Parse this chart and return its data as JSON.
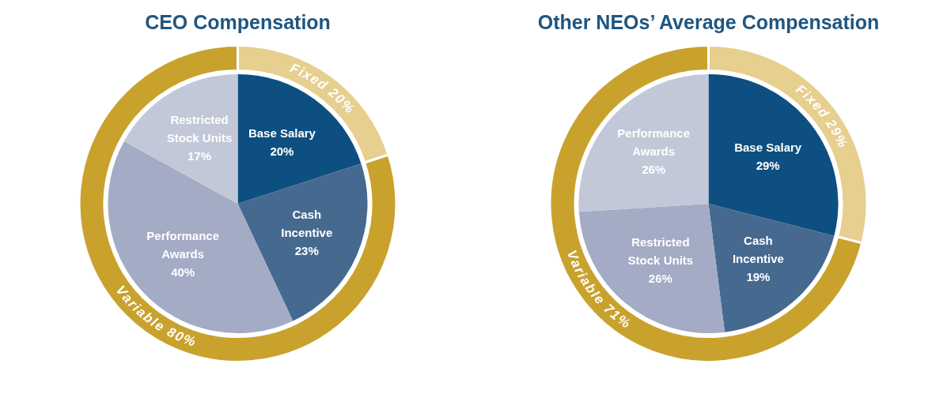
{
  "chart_data": [
    {
      "type": "pie",
      "title": "CEO Compensation",
      "categories": [
        "Base Salary",
        "Cash Incentive",
        "Performance Awards",
        "Restricted Stock Units"
      ],
      "values": [
        20,
        23,
        40,
        17
      ],
      "value_labels": [
        "20%",
        "23%",
        "40%",
        "17%"
      ],
      "colors": [
        "#0d4f80",
        "#46698f",
        "#a3abc5",
        "#c2c8d8"
      ]
    },
    {
      "type": "donut",
      "categories": [
        "Fixed",
        "Variable"
      ],
      "values": [
        20,
        80
      ],
      "value_labels": [
        "20%",
        "80%"
      ],
      "colors": [
        "#e6cf8f",
        "#c9a22e"
      ]
    },
    {
      "type": "pie",
      "title": "Other NEOs’ Average Compensation",
      "categories": [
        "Base Salary",
        "Cash Incentive",
        "Restricted Stock Units",
        "Performance Awards"
      ],
      "values": [
        29,
        19,
        26,
        26
      ],
      "value_labels": [
        "29%",
        "19%",
        "26%",
        "26%"
      ],
      "colors": [
        "#0d4f80",
        "#46698f",
        "#a3abc5",
        "#c2c8d8"
      ]
    },
    {
      "type": "donut",
      "categories": [
        "Fixed",
        "Variable"
      ],
      "values": [
        29,
        71
      ],
      "value_labels": [
        "29%",
        "71%"
      ],
      "colors": [
        "#e6cf8f",
        "#c9a22e"
      ]
    }
  ]
}
